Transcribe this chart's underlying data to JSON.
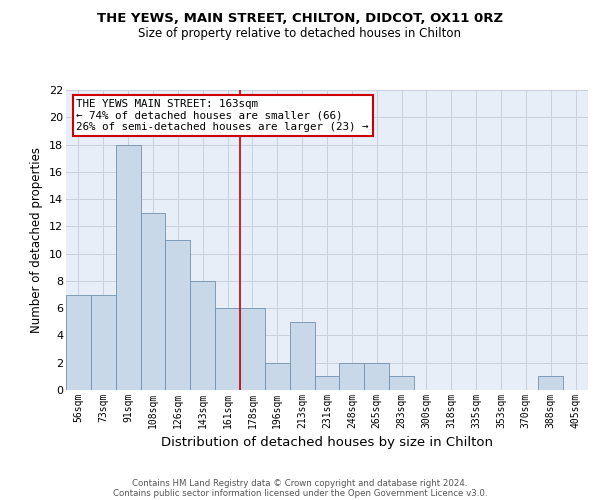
{
  "title1": "THE YEWS, MAIN STREET, CHILTON, DIDCOT, OX11 0RZ",
  "title2": "Size of property relative to detached houses in Chilton",
  "xlabel": "Distribution of detached houses by size in Chilton",
  "ylabel": "Number of detached properties",
  "categories": [
    "56sqm",
    "73sqm",
    "91sqm",
    "108sqm",
    "126sqm",
    "143sqm",
    "161sqm",
    "178sqm",
    "196sqm",
    "213sqm",
    "231sqm",
    "248sqm",
    "265sqm",
    "283sqm",
    "300sqm",
    "318sqm",
    "335sqm",
    "353sqm",
    "370sqm",
    "388sqm",
    "405sqm"
  ],
  "values": [
    7,
    7,
    18,
    13,
    11,
    8,
    6,
    6,
    2,
    5,
    1,
    2,
    2,
    1,
    0,
    0,
    0,
    0,
    0,
    1,
    0
  ],
  "bar_color": "#c8d8e8",
  "bar_edge_color": "#7090b0",
  "grid_color": "#c8d0de",
  "vline_color": "#cc0000",
  "annotation_title": "THE YEWS MAIN STREET: 163sqm",
  "annotation_line1": "← 74% of detached houses are smaller (66)",
  "annotation_line2": "26% of semi-detached houses are larger (23) →",
  "annotation_box_color": "#ffffff",
  "annotation_box_edge": "#cc0000",
  "footer1": "Contains HM Land Registry data © Crown copyright and database right 2024.",
  "footer2": "Contains public sector information licensed under the Open Government Licence v3.0.",
  "ylim": [
    0,
    22
  ],
  "yticks": [
    0,
    2,
    4,
    6,
    8,
    10,
    12,
    14,
    16,
    18,
    20,
    22
  ],
  "bg_color": "#e8eef8"
}
